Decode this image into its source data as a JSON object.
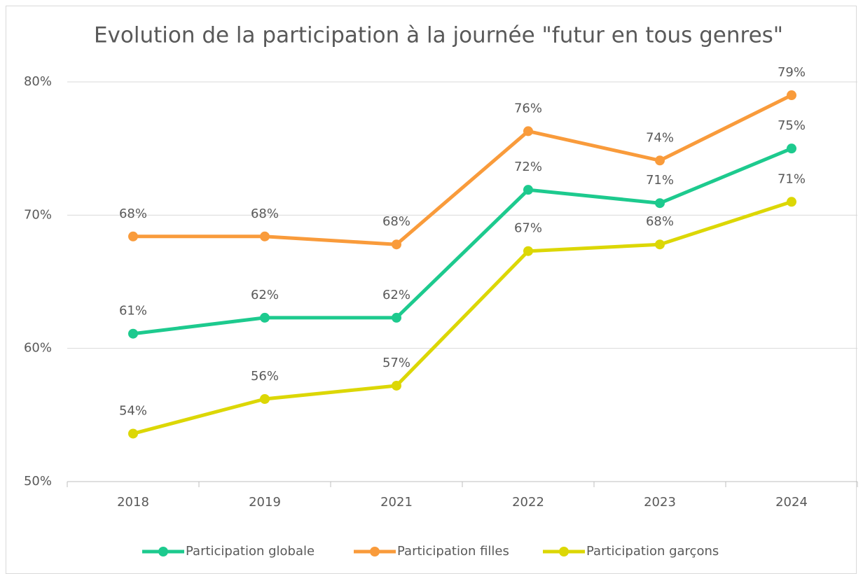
{
  "chart_data": {
    "type": "line",
    "title": "Evolution de la participation à la journée \"futur en tous genres\"",
    "categories": [
      "2018",
      "2019",
      "2021",
      "2022",
      "2023",
      "2024"
    ],
    "series": [
      {
        "name": "Participation globale",
        "color": "#1dca8e",
        "values": [
          61.1,
          62.3,
          62.3,
          71.9,
          70.9,
          75.0
        ],
        "value_labels": [
          "61%",
          "62%",
          "62%",
          "72%",
          "71%",
          "75%"
        ]
      },
      {
        "name": "Participation filles",
        "color": "#f99b3b",
        "values": [
          68.4,
          68.4,
          67.8,
          76.3,
          74.1,
          79.0
        ],
        "value_labels": [
          "68%",
          "68%",
          "68%",
          "76%",
          "74%",
          "79%"
        ]
      },
      {
        "name": "Participation garçons",
        "color": "#dcd705",
        "values": [
          53.6,
          56.2,
          57.2,
          67.3,
          67.8,
          71.0
        ],
        "value_labels": [
          "54%",
          "56%",
          "57%",
          "67%",
          "68%",
          "71%"
        ]
      }
    ],
    "ylim": [
      50,
      80
    ],
    "yticks": [
      {
        "value": 50,
        "label": "50%"
      },
      {
        "value": 60,
        "label": "60%"
      },
      {
        "value": 70,
        "label": "70%"
      },
      {
        "value": 80,
        "label": "80%"
      }
    ],
    "grid": true,
    "legend": "bottom"
  }
}
